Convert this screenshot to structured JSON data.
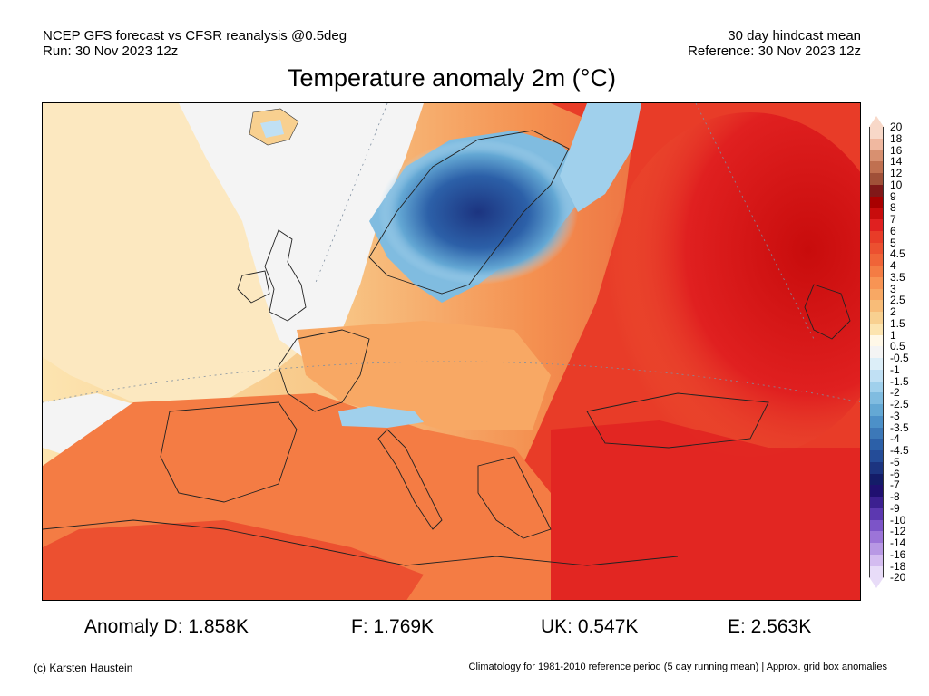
{
  "header": {
    "left_line1": "NCEP GFS forecast vs CFSR reanalysis @0.5deg",
    "left_line2": "Run: 30 Nov 2023 12z",
    "right_line1": "30 day hindcast mean",
    "right_line2": "Reference: 30 Nov 2023 12z"
  },
  "title": "Temperature anomaly 2m (°C)",
  "colorbar": {
    "labels": [
      "20",
      "18",
      "16",
      "14",
      "12",
      "10",
      "9",
      "8",
      "7",
      "6",
      "5",
      "4.5",
      "4",
      "3.5",
      "3",
      "2.5",
      "2",
      "1.5",
      "1",
      "0.5",
      "-0.5",
      "-1",
      "-1.5",
      "-2",
      "-2.5",
      "-3",
      "-3.5",
      "-4",
      "-4.5",
      "-5",
      "-6",
      "-7",
      "-8",
      "-9",
      "-10",
      "-12",
      "-14",
      "-16",
      "-18",
      "-20"
    ],
    "colors": [
      "#f8d8c8",
      "#f0b8a0",
      "#d89070",
      "#c07050",
      "#a05038",
      "#801818",
      "#a80000",
      "#c80c0c",
      "#e02020",
      "#e83c28",
      "#ec5030",
      "#f06438",
      "#f47c44",
      "#f89454",
      "#f8a864",
      "#f8bc78",
      "#f8d090",
      "#fce4b0",
      "#fff8e8",
      "#f4f4f4",
      "#dceef8",
      "#c0e0f4",
      "#a0d0ec",
      "#80bce0",
      "#64a8d4",
      "#4c90c8",
      "#3c78b8",
      "#2c60a8",
      "#244c98",
      "#1c3480",
      "#141c68",
      "#201070",
      "#3c2090",
      "#5c38b0",
      "#7c54c8",
      "#9c74d8",
      "#b898e4",
      "#d4bcf0",
      "#e8dcf8"
    ]
  },
  "stats": {
    "anomaly_d": "Anomaly D: 1.858K",
    "f": "F: 1.769K",
    "uk": "UK: 0.547K",
    "e": "E: 2.563K"
  },
  "footer": {
    "left": "(c) Karsten Haustein",
    "right": "Climatology for 1981-2010 reference period (5 day running mean) | Approx. grid box anomalies"
  }
}
